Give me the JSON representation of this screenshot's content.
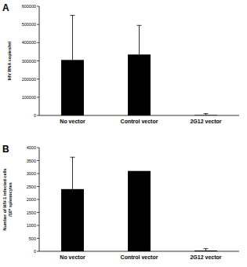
{
  "chart_data": [
    {
      "type": "bar",
      "title": "A",
      "ylabel": "HIV RNA copies/ml",
      "categories": [
        "No vector",
        "Control vector",
        "2G12 vector"
      ],
      "values": [
        305000,
        335000,
        2000
      ],
      "errors": [
        245000,
        160000,
        8000
      ],
      "color": "#000000",
      "ylim": [
        0,
        600000
      ],
      "yticks": [
        0,
        100000,
        200000,
        300000,
        400000,
        500000,
        600000
      ],
      "grid": false
    },
    {
      "type": "bar",
      "title": "B",
      "ylabel": "Number of HIV-1 infected cells /10⁶ splenocytes",
      "categories": [
        "No vector",
        "Control vector",
        "2G12 vector"
      ],
      "values": [
        2400,
        3100,
        30
      ],
      "errors": [
        1230,
        0,
        70
      ],
      "color": "#000000",
      "ylim": [
        0,
        4000
      ],
      "yticks": [
        0,
        500,
        1000,
        1500,
        2000,
        2500,
        3000,
        3500,
        4000
      ],
      "grid": false
    }
  ]
}
